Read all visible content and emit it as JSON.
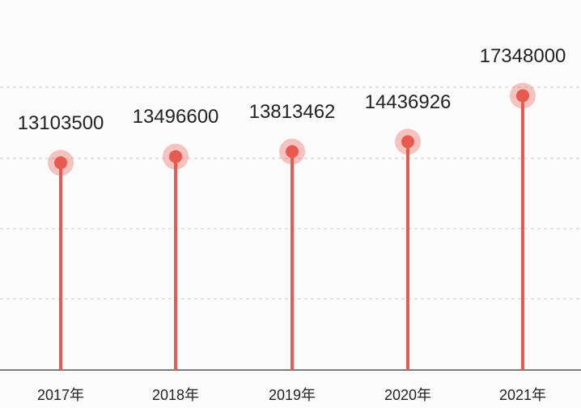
{
  "chart_data": {
    "type": "lollipop",
    "categories": [
      "2017年",
      "2018年",
      "2019年",
      "2020年",
      "2021年"
    ],
    "values": [
      13103500,
      13496600,
      13813462,
      14436926,
      17348000
    ],
    "color": "#e8594f",
    "ylim": [
      0,
      23400000
    ]
  }
}
